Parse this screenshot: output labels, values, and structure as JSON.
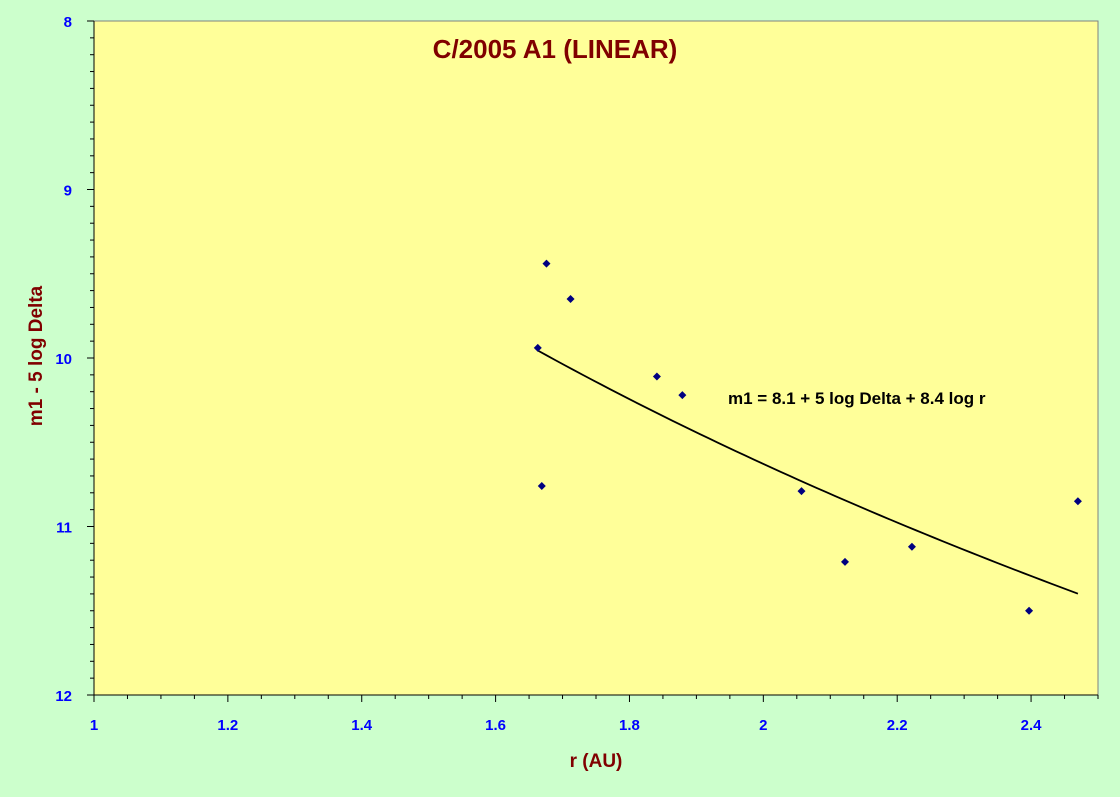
{
  "chart_data": {
    "type": "scatter",
    "title": "C/2005 A1 (LINEAR)",
    "xlabel": "r (AU)",
    "ylabel": "m1 - 5 log Delta",
    "xlim": [
      1,
      2.5
    ],
    "ylim": [
      8,
      12
    ],
    "y_inverted": true,
    "x_ticks": [
      "1",
      "1.2",
      "1.4",
      "1.6",
      "1.8",
      "2",
      "2.2",
      "2.4"
    ],
    "y_ticks": [
      "8",
      "9",
      "10",
      "11",
      "12"
    ],
    "series": [
      {
        "marker": "diamond",
        "points": [
          [
            1.663,
            9.94
          ],
          [
            1.669,
            10.76
          ],
          [
            1.676,
            9.44
          ],
          [
            1.712,
            9.65
          ],
          [
            1.841,
            10.11
          ],
          [
            1.879,
            10.22
          ],
          [
            2.057,
            10.79
          ],
          [
            2.122,
            11.21
          ],
          [
            2.222,
            11.12
          ],
          [
            2.397,
            11.5
          ],
          [
            2.47,
            10.85
          ]
        ]
      }
    ],
    "fit": {
      "formula": "m1 = 8.1 + 5 log Delta + 8.4 log r",
      "h": 8.1,
      "k": 8.4,
      "x_range": [
        1.663,
        2.47
      ]
    },
    "grid": false,
    "legend": "none",
    "colors": {
      "background": "#ccffcc",
      "plot_area": "#ffff99",
      "title": "#800000",
      "axis_label": "#800000",
      "tick_label": "#0000ff",
      "marker": "#000080",
      "fit_line": "#000000"
    }
  }
}
